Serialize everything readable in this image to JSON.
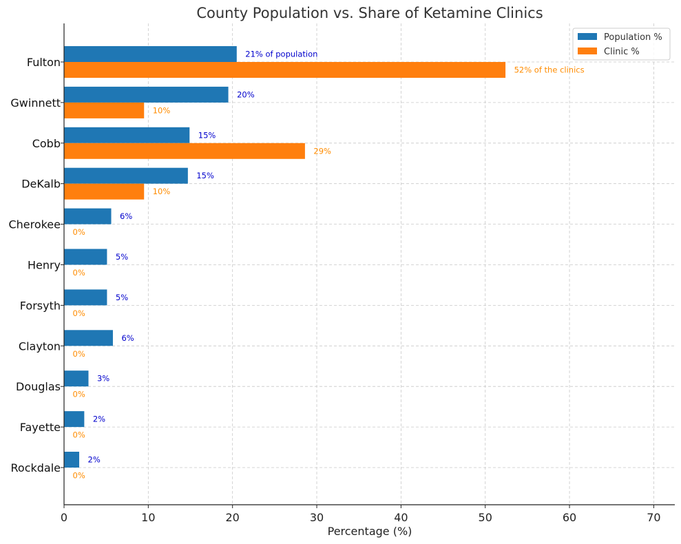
{
  "chart_data": {
    "type": "bar",
    "orientation": "horizontal",
    "title": "County Population vs. Share of Ketamine Clinics",
    "xlabel": "Percentage (%)",
    "ylabel": "",
    "xlim": [
      0,
      72.5
    ],
    "xticks": [
      0,
      10,
      20,
      30,
      40,
      50,
      60,
      70
    ],
    "grid": true,
    "legend_position": "top-right",
    "categories": [
      "Fulton",
      "Gwinnett",
      "Cobb",
      "DeKalb",
      "Cherokee",
      "Henry",
      "Forsyth",
      "Clayton",
      "Douglas",
      "Fayette",
      "Rockdale"
    ],
    "series": [
      {
        "name": "Population %",
        "color": "#1f77b4",
        "label_color": "#0000cc",
        "values": [
          20.5,
          19.5,
          14.9,
          14.7,
          5.6,
          5.1,
          5.1,
          5.8,
          2.9,
          2.4,
          1.8
        ],
        "labels": [
          "21% of population",
          "20%",
          "15%",
          "15%",
          "6%",
          "5%",
          "5%",
          "6%",
          "3%",
          "2%",
          "2%"
        ]
      },
      {
        "name": "Clinic %",
        "color": "#ff7f0e",
        "label_color": "#ff8c00",
        "values": [
          52.4,
          9.5,
          28.6,
          9.5,
          0,
          0,
          0,
          0,
          0,
          0,
          0
        ],
        "labels": [
          "52% of the clinics",
          "10%",
          "29%",
          "10%",
          "0%",
          "0%",
          "0%",
          "0%",
          "0%",
          "0%",
          "0%"
        ]
      }
    ]
  }
}
